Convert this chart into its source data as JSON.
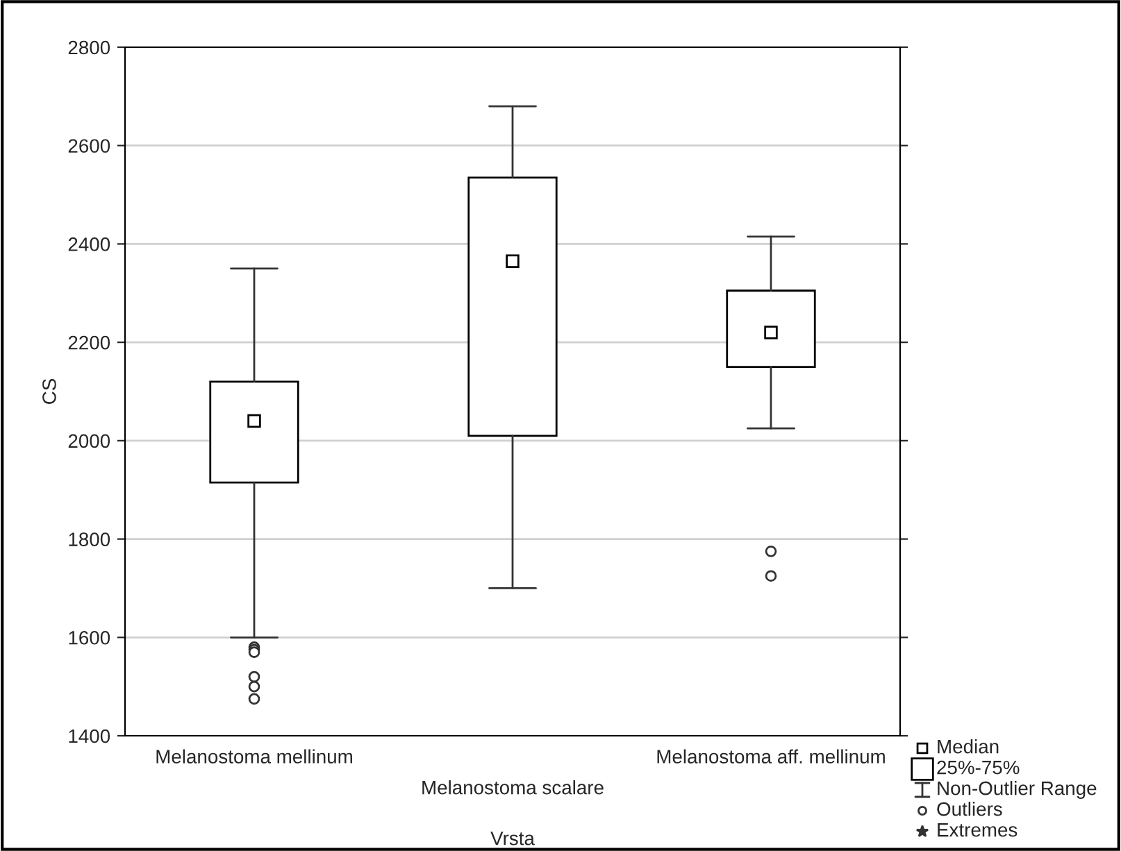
{
  "chart_data": {
    "type": "box",
    "xlabel": "Vrsta",
    "ylabel": "CS",
    "categories": [
      "Melanostoma mellinum",
      "Melanostoma scalare",
      "Melanostoma aff. mellinum"
    ],
    "boxes": [
      {
        "low": 1600,
        "q1": 1915,
        "median": 2040,
        "q3": 2120,
        "high": 2350,
        "outliers": [
          1580,
          1575,
          1570,
          1520,
          1500,
          1475
        ]
      },
      {
        "low": 1700,
        "q1": 2010,
        "median": 2365,
        "q3": 2535,
        "high": 2680
      },
      {
        "low": 2025,
        "q1": 2150,
        "median": 2220,
        "q3": 2305,
        "high": 2415,
        "outliers": [
          1775,
          1725
        ]
      }
    ],
    "color": "#ffffff",
    "ylim": [
      1400,
      2800
    ],
    "yticks": [
      1400,
      1600,
      1800,
      2000,
      2200,
      2400,
      2600,
      2800
    ],
    "grid": "y",
    "marker": "square",
    "annotations": [
      "Median",
      "25%-75%",
      "Non-Outlier Range",
      "Outliers",
      "Extremes"
    ]
  }
}
